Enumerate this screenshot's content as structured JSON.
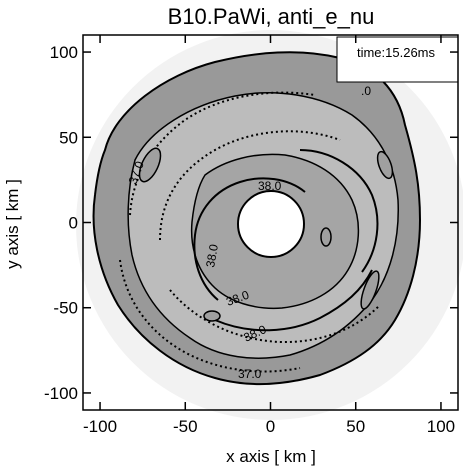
{
  "chart_data": {
    "type": "heatmap",
    "title": "B10.PaWi, anti_e_nu",
    "xlabel": "x axis [ km ]",
    "ylabel": "y axis [ km ]",
    "xlim": [
      -110,
      110
    ],
    "ylim": [
      -110,
      110
    ],
    "xticks": [
      -100,
      -50,
      0,
      50,
      100
    ],
    "yticks": [
      -100,
      -50,
      0,
      50,
      100
    ],
    "time_label": "time:15.26ms",
    "contour_levels": [
      "37.0",
      "38.0"
    ],
    "contour_labels": [
      "37.0",
      "38.0",
      "38.0",
      "38.0",
      "38.0",
      "37.0",
      ".0"
    ],
    "colors": {
      "outer_region": "#8f8f8f",
      "mid_region": "#b4b4b4",
      "inner_region": "#a0a0a0",
      "center_hole": "#ffffff",
      "halo": "#f0f0f0"
    }
  }
}
